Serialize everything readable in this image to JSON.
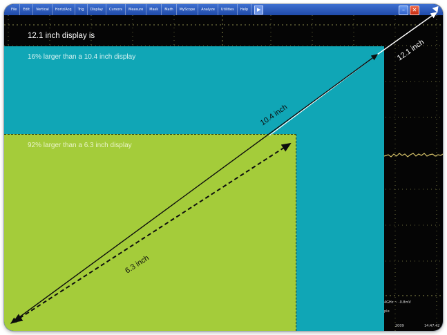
{
  "menubar": {
    "items": [
      "File",
      "Edit",
      "Vertical",
      "Horiz/Acq",
      "Trig",
      "Display",
      "Cursors",
      "Measure",
      "Mask",
      "Math",
      "MyScope",
      "Analyze",
      "Utilities",
      "Help"
    ],
    "help_icon": "arrow-icon"
  },
  "window_buttons": {
    "minimize": "minimize-icon",
    "close": "close-icon"
  },
  "colors": {
    "teal": "#10a6b6",
    "green": "#a4cc3a",
    "screen": "#050505",
    "menubar": "#2a58bd"
  },
  "captions": {
    "top": "12.1 inch display is",
    "teal": "16% larger than a 10.4 inch display",
    "green": "92% larger than a 6.3 inch display"
  },
  "dimensions": {
    "d121": "12.1 inch",
    "d104": "10.4 inch",
    "d63": "6.3 inch"
  },
  "readout": {
    "line1": "4GHz  ~  -0.8mV",
    "line2": "ple",
    "line3": "2009",
    "line4": "14:47:42"
  }
}
